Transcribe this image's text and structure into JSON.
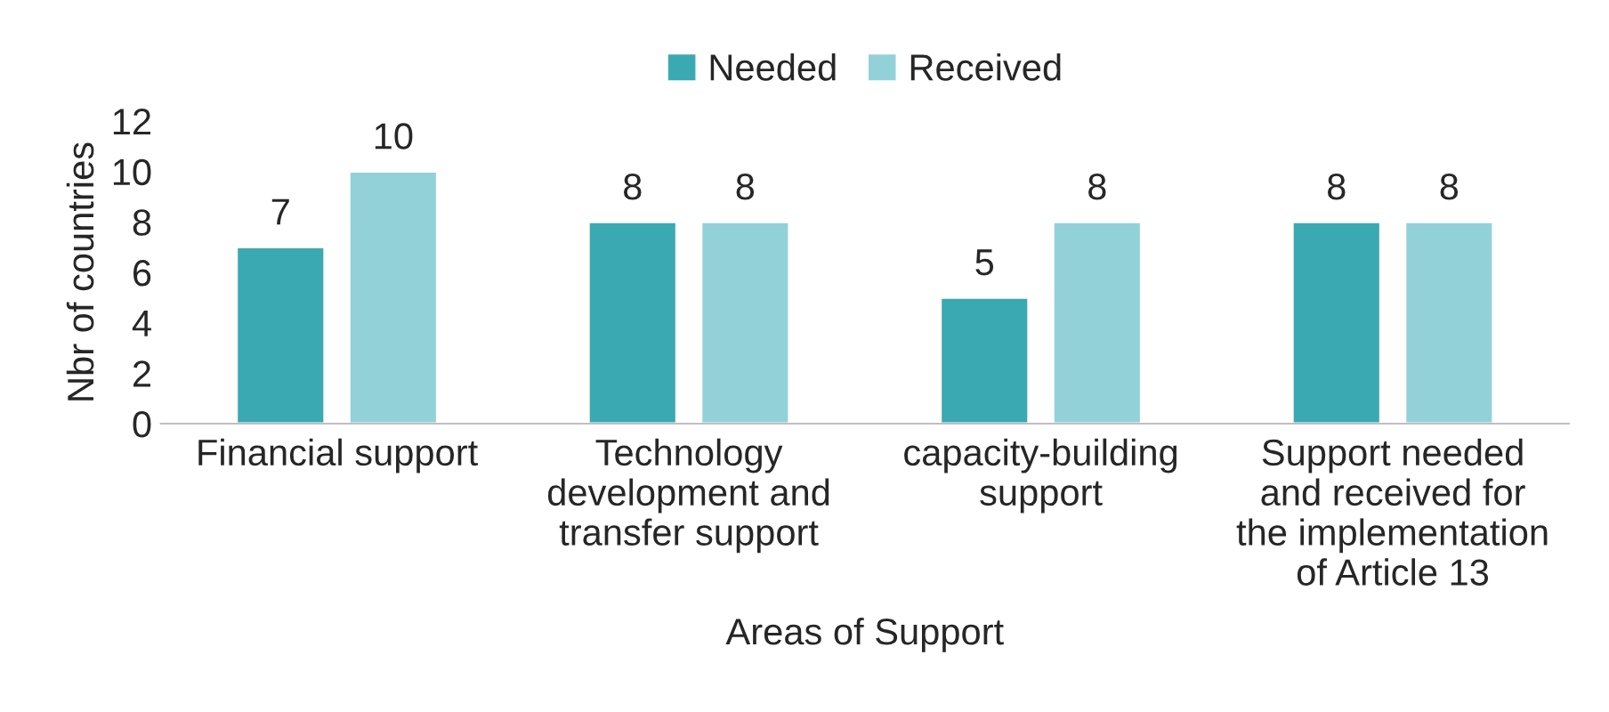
{
  "chart_data": {
    "type": "bar",
    "xlabel": "Areas of Support",
    "ylabel": "Nbr of countries",
    "categories": [
      "Financial support",
      "Technology\ndevelopment and\ntransfer support",
      "capacity-building\nsupport",
      "Support needed\nand received for\nthe implementation\nof Article 13"
    ],
    "series": [
      {
        "name": "Needed",
        "color": "#3aa9b1",
        "values": [
          7,
          8,
          5,
          8
        ]
      },
      {
        "name": "Received",
        "color": "#93d1d9",
        "values": [
          10,
          8,
          8,
          8
        ]
      }
    ],
    "ylim": [
      0,
      12
    ],
    "yticks": [
      0,
      2,
      4,
      6,
      8,
      10,
      12
    ],
    "data_labels": true,
    "legend": "top",
    "grid": false
  }
}
